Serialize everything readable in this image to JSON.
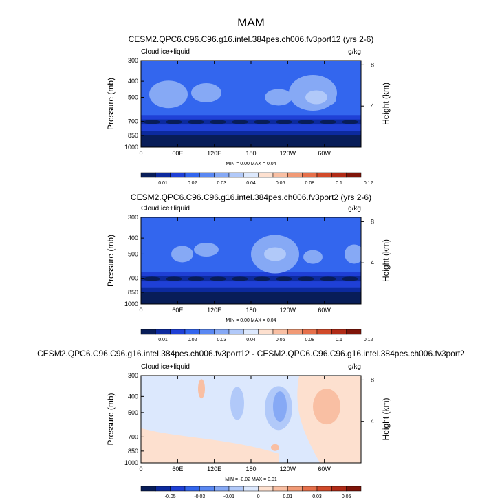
{
  "figure": {
    "title": "MAM"
  },
  "chart_data": [
    {
      "type": "heatmap",
      "title": "CESM2.QPC6.C96.C96.g16.intel.384pes.ch006.fv3port12 (yrs 2-6)",
      "field_label": "Cloud ice+liquid",
      "units": "g/kg",
      "ylabel": "Pressure (mb)",
      "y2label": "Height (km)",
      "x_ticks": [
        "0",
        "60E",
        "120E",
        "180",
        "120W",
        "60W"
      ],
      "y_ticks": [
        "300",
        "400",
        "500",
        "700",
        "850",
        "1000"
      ],
      "y2_ticks": [
        "8",
        "4"
      ],
      "stats": "MIN =   0.00  MAX =   0.04",
      "colorbar_labels": [
        "0.01",
        "0.02",
        "0.03",
        "0.04",
        "0.06",
        "0.08",
        "0.1",
        "0.12"
      ],
      "colorbar_colors": [
        "#081d58",
        "#0c2a9e",
        "#1f40d6",
        "#3366ee",
        "#5a88f2",
        "#86a9f5",
        "#b1c9f9",
        "#dce8fd",
        "#fde0cf",
        "#f9bfa3",
        "#f19a76",
        "#e6704b",
        "#d14a2a",
        "#b02b17",
        "#7f1409"
      ]
    },
    {
      "type": "heatmap",
      "title": "CESM2.QPC6.C96.C96.g16.intel.384pes.ch006.fv3port2 (yrs 2-6)",
      "field_label": "Cloud ice+liquid",
      "units": "g/kg",
      "ylabel": "Pressure (mb)",
      "y2label": "Height (km)",
      "x_ticks": [
        "0",
        "60E",
        "120E",
        "180",
        "120W",
        "60W"
      ],
      "y_ticks": [
        "300",
        "400",
        "500",
        "700",
        "850",
        "1000"
      ],
      "y2_ticks": [
        "8",
        "4"
      ],
      "stats": "MIN =   0.00  MAX =   0.04",
      "colorbar_labels": [
        "0.01",
        "0.02",
        "0.03",
        "0.04",
        "0.06",
        "0.08",
        "0.1",
        "0.12"
      ],
      "colorbar_colors": [
        "#081d58",
        "#0c2a9e",
        "#1f40d6",
        "#3366ee",
        "#5a88f2",
        "#86a9f5",
        "#b1c9f9",
        "#dce8fd",
        "#fde0cf",
        "#f9bfa3",
        "#f19a76",
        "#e6704b",
        "#d14a2a",
        "#b02b17",
        "#7f1409"
      ]
    },
    {
      "type": "heatmap",
      "title": "CESM2.QPC6.C96.C96.g16.intel.384pes.ch006.fv3port12 - CESM2.QPC6.C96.C96.g16.intel.384pes.ch006.fv3port2",
      "field_label": "Cloud ice+liquid",
      "units": "g/kg",
      "ylabel": "Pressure (mb)",
      "y2label": "Height (km)",
      "x_ticks": [
        "0",
        "60E",
        "120E",
        "180",
        "120W",
        "60W"
      ],
      "y_ticks": [
        "300",
        "400",
        "500",
        "700",
        "850",
        "1000"
      ],
      "y2_ticks": [
        "8",
        "4"
      ],
      "stats": "MIN =  -0.02  MAX =   0.01",
      "colorbar_labels": [
        "-0.05",
        "-0.03",
        "-0.01",
        "0",
        "0.01",
        "0.03",
        "0.05"
      ],
      "colorbar_colors": [
        "#081d58",
        "#0c2a9e",
        "#1f40d6",
        "#3366ee",
        "#5a88f2",
        "#86a9f5",
        "#b1c9f9",
        "#dce8fd",
        "#fde0cf",
        "#f9bfa3",
        "#f19a76",
        "#e6704b",
        "#d14a2a",
        "#b02b17",
        "#7f1409"
      ]
    }
  ]
}
